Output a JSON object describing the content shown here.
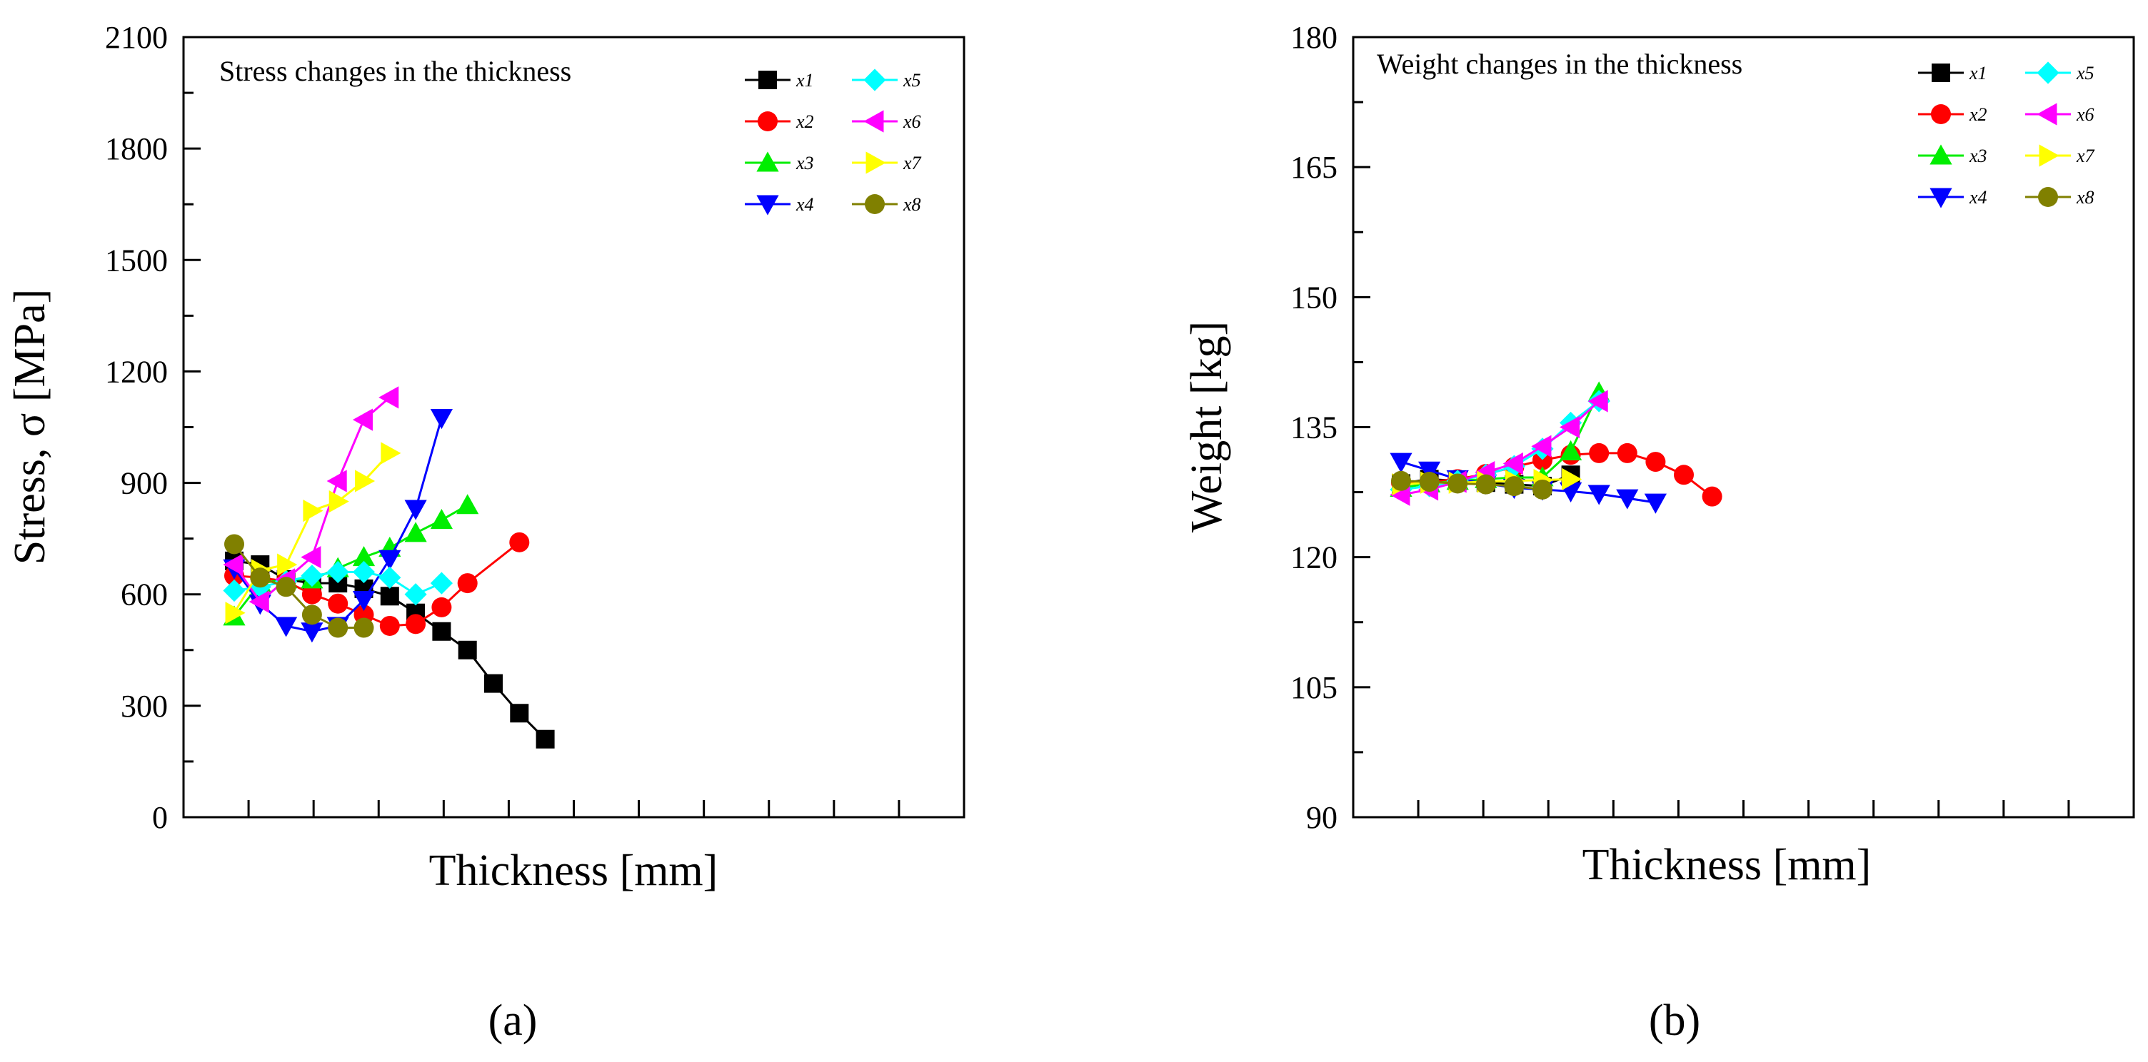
{
  "chart_data": [
    {
      "type": "line",
      "caption": "(a)",
      "title": "Stress changes in the thickness",
      "xlabel": "Thickness [mm]",
      "ylabel": "Stress, σ [MPa]",
      "ylim": [
        0,
        2100
      ],
      "y_major_ticks": [
        0,
        300,
        600,
        900,
        1200,
        1500,
        1800,
        2100
      ],
      "y_tick_labels": [
        "0",
        "300",
        "600",
        "900",
        "1200",
        "1500",
        "1800",
        "2100"
      ],
      "x_tick_count": 12,
      "x_tick_labels": [],
      "legend": {
        "position": "top-right",
        "columns": 2
      },
      "series": [
        {
          "name": "x1",
          "color": "#000000",
          "marker": "square",
          "x": [
            1,
            2,
            3,
            4,
            5,
            6,
            7,
            8,
            9,
            10,
            11,
            12,
            13
          ],
          "values": [
            690,
            680,
            640,
            630,
            630,
            615,
            595,
            550,
            500,
            450,
            360,
            280,
            210
          ]
        },
        {
          "name": "x2",
          "color": "#ff0000",
          "marker": "circle",
          "x": [
            1,
            2,
            3,
            4,
            5,
            6,
            7,
            8,
            9,
            10,
            12
          ],
          "values": [
            650,
            645,
            635,
            600,
            575,
            545,
            515,
            520,
            565,
            630,
            740
          ]
        },
        {
          "name": "x3",
          "color": "#00ee00",
          "marker": "triangle-up",
          "x": [
            1,
            2,
            3,
            4,
            5,
            6,
            7,
            8,
            9,
            10
          ],
          "values": [
            540,
            630,
            640,
            640,
            670,
            700,
            725,
            765,
            800,
            840
          ]
        },
        {
          "name": "x4",
          "color": "#0000ff",
          "marker": "triangle-down",
          "x": [
            1,
            2,
            3,
            4,
            5,
            6,
            7,
            8,
            9
          ],
          "values": [
            670,
            575,
            515,
            500,
            515,
            585,
            695,
            830,
            1075
          ]
        },
        {
          "name": "x5",
          "color": "#00ffff",
          "marker": "diamond",
          "x": [
            1,
            2,
            3,
            4,
            5,
            6,
            7,
            8,
            9
          ],
          "values": [
            610,
            620,
            635,
            650,
            660,
            660,
            645,
            600,
            630
          ]
        },
        {
          "name": "x6",
          "color": "#ff00ff",
          "marker": "triangle-left",
          "x": [
            1,
            2,
            3,
            4,
            5,
            6,
            7
          ],
          "values": [
            680,
            580,
            640,
            700,
            905,
            1070,
            1130
          ]
        },
        {
          "name": "x7",
          "color": "#ffff00",
          "marker": "triangle-right",
          "x": [
            1,
            2,
            3,
            4,
            5,
            6,
            7
          ],
          "values": [
            550,
            665,
            680,
            825,
            850,
            905,
            980
          ]
        },
        {
          "name": "x8",
          "color": "#808000",
          "marker": "circle",
          "x": [
            1,
            2,
            3,
            4,
            5,
            6
          ],
          "values": [
            735,
            645,
            620,
            545,
            510,
            510
          ]
        }
      ]
    },
    {
      "type": "line",
      "caption": "(b)",
      "title": "Weight changes in the thickness",
      "xlabel": "Thickness [mm]",
      "ylabel": "Weight [kg]",
      "ylim": [
        90,
        180
      ],
      "y_major_ticks": [
        90,
        105,
        120,
        135,
        150,
        165,
        180
      ],
      "y_tick_labels": [
        "90",
        "105",
        "120",
        "135",
        "150",
        "165",
        "180"
      ],
      "x_tick_count": 12,
      "x_tick_labels": [],
      "legend": {
        "position": "top-right",
        "columns": 2
      },
      "series": [
        {
          "name": "x1",
          "color": "#000000",
          "marker": "square",
          "x": [
            1,
            2,
            3,
            4,
            5,
            6,
            7
          ],
          "values": [
            128.5,
            129,
            128.8,
            128.6,
            128.4,
            128.2,
            129.5
          ]
        },
        {
          "name": "x2",
          "color": "#ff0000",
          "marker": "circle",
          "x": [
            1,
            2,
            3,
            4,
            5,
            6,
            7,
            8,
            9,
            10,
            11,
            12
          ],
          "values": [
            128.6,
            128.7,
            129,
            129.6,
            130.4,
            131.2,
            131.8,
            132,
            132,
            131,
            129.5,
            127
          ]
        },
        {
          "name": "x3",
          "color": "#00ee00",
          "marker": "triangle-up",
          "x": [
            1,
            2,
            3,
            4,
            5,
            6,
            7,
            8
          ],
          "values": [
            128,
            128.5,
            128.8,
            129,
            129.2,
            129.2,
            132.2,
            139
          ]
        },
        {
          "name": "x4",
          "color": "#0000ff",
          "marker": "triangle-down",
          "x": [
            1,
            2,
            3,
            4,
            5,
            6,
            7,
            8,
            9,
            10
          ],
          "values": [
            131,
            130,
            129,
            128.5,
            128,
            127.8,
            127.6,
            127.3,
            126.8,
            126.3
          ]
        },
        {
          "name": "x5",
          "color": "#00ffff",
          "marker": "diamond",
          "x": [
            1,
            2,
            3,
            4,
            5,
            6,
            7,
            8
          ],
          "values": [
            127.8,
            128.2,
            128.8,
            129.5,
            130.5,
            132.5,
            135.5,
            138
          ]
        },
        {
          "name": "x6",
          "color": "#ff00ff",
          "marker": "triangle-left",
          "x": [
            1,
            2,
            3,
            4,
            5,
            6,
            7,
            8
          ],
          "values": [
            127.2,
            127.8,
            128.7,
            129.8,
            130.8,
            132.8,
            135,
            138
          ]
        },
        {
          "name": "x7",
          "color": "#ffff00",
          "marker": "triangle-right",
          "x": [
            1,
            2,
            3,
            4,
            5,
            6,
            7
          ],
          "values": [
            128.4,
            128.6,
            128.6,
            128.7,
            128.8,
            128.9,
            129
          ]
        },
        {
          "name": "x8",
          "color": "#808000",
          "marker": "circle",
          "x": [
            1,
            2,
            3,
            4,
            5,
            6
          ],
          "values": [
            128.8,
            128.7,
            128.5,
            128.4,
            128.2,
            127.8
          ]
        }
      ]
    }
  ]
}
